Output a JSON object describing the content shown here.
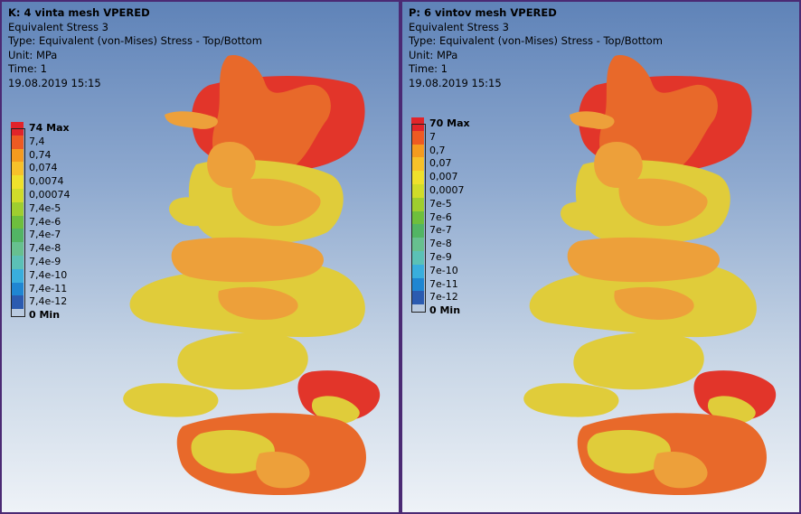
{
  "left": {
    "title": "K: 4 vinta mesh VPERED",
    "subtitle": "Equivalent Stress 3",
    "type": "Type: Equivalent (von-Mises) Stress - Top/Bottom",
    "unit": "Unit: MPa",
    "time": "Time: 1",
    "timestamp": "19.08.2019 15:15",
    "legend": [
      "74 Max",
      "7,4",
      "0,74",
      "0,074",
      "0,0074",
      "0,00074",
      "7,4e-5",
      "7,4e-6",
      "7,4e-7",
      "7,4e-8",
      "7,4e-9",
      "7,4e-10",
      "7,4e-11",
      "7,4e-12",
      "0 Min"
    ]
  },
  "right": {
    "title": "P: 6 vintov mesh VPERED",
    "subtitle": "Equivalent Stress 3",
    "type": "Type: Equivalent (von-Mises) Stress - Top/Bottom",
    "unit": "Unit: MPa",
    "time": "Time: 1",
    "timestamp": "19.08.2019 15:15",
    "legend": [
      "70 Max",
      "7",
      "0,7",
      "0,07",
      "0,007",
      "0,0007",
      "7e-5",
      "7e-6",
      "7e-7",
      "7e-8",
      "7e-9",
      "7e-10",
      "7e-11",
      "7e-12",
      "0 Min"
    ]
  },
  "colors": {
    "scale": [
      "#e1242a",
      "#ee5a22",
      "#f59b1f",
      "#f7c12a",
      "#efe12c",
      "#d0dc2a",
      "#9fce2f",
      "#6ebf3d",
      "#52b564",
      "#67c08f",
      "#5bc1b6",
      "#39aedd",
      "#1f86d2",
      "#2b5bb0"
    ],
    "hot_red": "#e2352a",
    "orange": "#e8692a",
    "light_orange": "#eda03a",
    "yellow": "#e0cc3a",
    "shadow": "#a07a2a",
    "background_top": "#5f83b8",
    "background_bottom": "#eef2f7",
    "frame": "#4b2a74"
  }
}
